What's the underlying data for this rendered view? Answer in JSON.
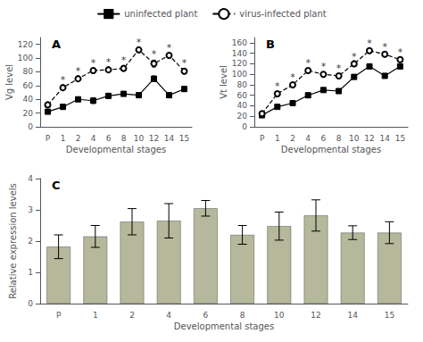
{
  "chart_data": [
    {
      "type": "line",
      "title": "A",
      "x_label": "Developmental stages",
      "y_label": "Vg level",
      "categories": [
        "P",
        "1",
        "2",
        "4",
        "6",
        "8",
        "10",
        "12",
        "14",
        "15"
      ],
      "series": [
        {
          "name": "uninfected plant",
          "color": "#000000",
          "marker": "square",
          "line_style": "solid",
          "values": [
            22,
            29,
            40,
            38,
            45,
            48,
            46,
            70,
            46,
            55
          ],
          "errors": [
            2,
            3,
            3,
            4,
            3,
            3,
            3,
            4,
            3,
            3
          ]
        },
        {
          "name": "virus-infected plant",
          "color": "#000000",
          "marker": "emptyCircle",
          "line_style": "dashed",
          "values": [
            32,
            57,
            70,
            82,
            83,
            85,
            112,
            92,
            104,
            81
          ],
          "errors": [
            2,
            3,
            3,
            3,
            3,
            3,
            3,
            5,
            3,
            3
          ]
        }
      ],
      "annotations": [
        {
          "series": "virus-infected plant",
          "category": "1",
          "text": "*"
        },
        {
          "series": "virus-infected plant",
          "category": "2",
          "text": "*"
        },
        {
          "series": "virus-infected plant",
          "category": "4",
          "text": "*"
        },
        {
          "series": "virus-infected plant",
          "category": "6",
          "text": "*"
        },
        {
          "series": "virus-infected plant",
          "category": "8",
          "text": "*"
        },
        {
          "series": "virus-infected plant",
          "category": "10",
          "text": "*"
        },
        {
          "series": "virus-infected plant",
          "category": "12",
          "text": "*"
        },
        {
          "series": "virus-infected plant",
          "category": "14",
          "text": "*"
        },
        {
          "series": "virus-infected plant",
          "category": "15",
          "text": "*"
        }
      ],
      "ylim": [
        0,
        130
      ],
      "yticks": [
        0,
        20,
        40,
        60,
        80,
        100,
        120
      ],
      "grid": false,
      "legend": "top"
    },
    {
      "type": "line",
      "title": "B",
      "x_label": "Developmental stages",
      "y_label": "Vt level",
      "categories": [
        "P",
        "1",
        "2",
        "4",
        "6",
        "8",
        "10",
        "12",
        "14",
        "15"
      ],
      "series": [
        {
          "name": "uninfected plant",
          "color": "#000000",
          "marker": "square",
          "line_style": "solid",
          "values": [
            22,
            38,
            45,
            60,
            70,
            68,
            95,
            115,
            97,
            115
          ],
          "errors": [
            2,
            3,
            3,
            3,
            3,
            3,
            3,
            4,
            3,
            3
          ]
        },
        {
          "name": "virus-infected plant",
          "color": "#000000",
          "marker": "emptyCircle",
          "line_style": "dashed",
          "values": [
            25,
            63,
            80,
            107,
            100,
            97,
            120,
            145,
            138,
            128
          ],
          "errors": [
            2,
            3,
            3,
            3,
            3,
            3,
            3,
            3,
            3,
            3
          ]
        }
      ],
      "annotations": [
        {
          "series": "virus-infected plant",
          "category": "1",
          "text": "*"
        },
        {
          "series": "virus-infected plant",
          "category": "2",
          "text": "*"
        },
        {
          "series": "virus-infected plant",
          "category": "4",
          "text": "*"
        },
        {
          "series": "virus-infected plant",
          "category": "6",
          "text": "*"
        },
        {
          "series": "virus-infected plant",
          "category": "8",
          "text": "*"
        },
        {
          "series": "virus-infected plant",
          "category": "10",
          "text": "*"
        },
        {
          "series": "virus-infected plant",
          "category": "12",
          "text": "*"
        },
        {
          "series": "virus-infected plant",
          "category": "14",
          "text": "*"
        },
        {
          "series": "virus-infected plant",
          "category": "15",
          "text": "*"
        }
      ],
      "ylim": [
        0,
        170
      ],
      "yticks": [
        0,
        20,
        40,
        60,
        80,
        100,
        120,
        140,
        160
      ],
      "grid": false,
      "legend": "top"
    },
    {
      "type": "bar",
      "title": "C",
      "x_label": "Developmental stages",
      "y_label": "Relative expression levels",
      "categories": [
        "P",
        "1",
        "2",
        "4",
        "6",
        "8",
        "10",
        "12",
        "14",
        "15"
      ],
      "values": [
        1.82,
        2.15,
        2.62,
        2.65,
        3.05,
        2.2,
        2.48,
        2.82,
        2.27,
        2.27
      ],
      "errors": [
        0.38,
        0.35,
        0.42,
        0.55,
        0.25,
        0.3,
        0.45,
        0.5,
        0.22,
        0.35
      ],
      "color": "#b5b89a",
      "ylim": [
        0,
        4
      ],
      "yticks": [
        0,
        1,
        2,
        3,
        4
      ],
      "grid": false
    }
  ]
}
